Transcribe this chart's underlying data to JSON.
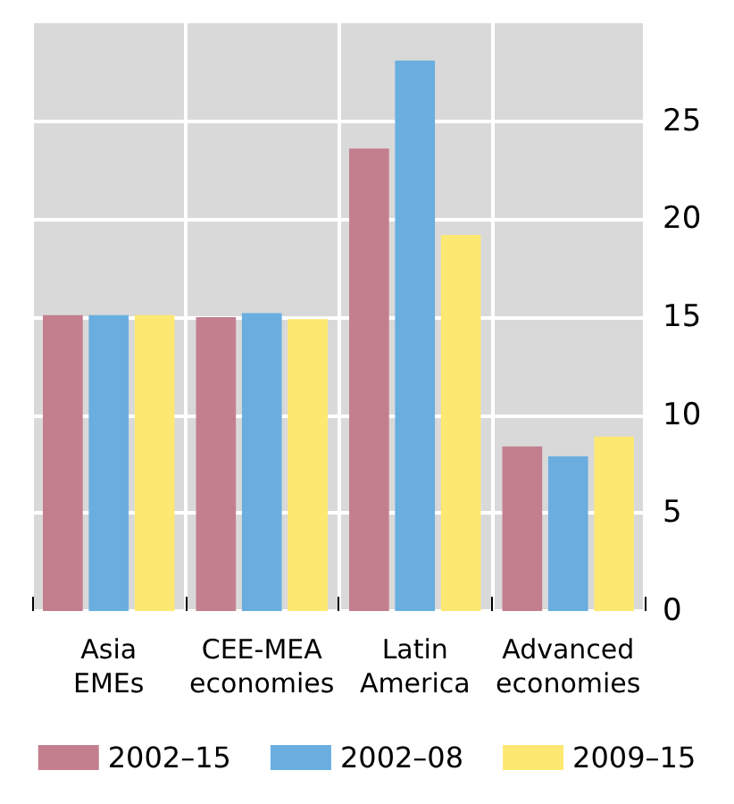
{
  "chart_data": {
    "type": "bar",
    "categories": [
      "Asia\nEMEs",
      "CEE-MEA\neconomies",
      "Latin\nAmerica",
      "Advanced\neconomies"
    ],
    "series": [
      {
        "name": "2002–15",
        "color": "#c47f8f",
        "values": [
          15.1,
          15.0,
          23.6,
          8.4
        ]
      },
      {
        "name": "2002–08",
        "color": "#6aaee0",
        "values": [
          15.1,
          15.2,
          28.1,
          7.9
        ]
      },
      {
        "name": "2009–15",
        "color": "#fde872",
        "values": [
          15.1,
          14.9,
          19.2,
          8.9
        ]
      }
    ],
    "ylim": [
      0,
      30
    ],
    "yticks": [
      0,
      5,
      10,
      15,
      20,
      25
    ],
    "grid": true,
    "legend": "bottom"
  }
}
